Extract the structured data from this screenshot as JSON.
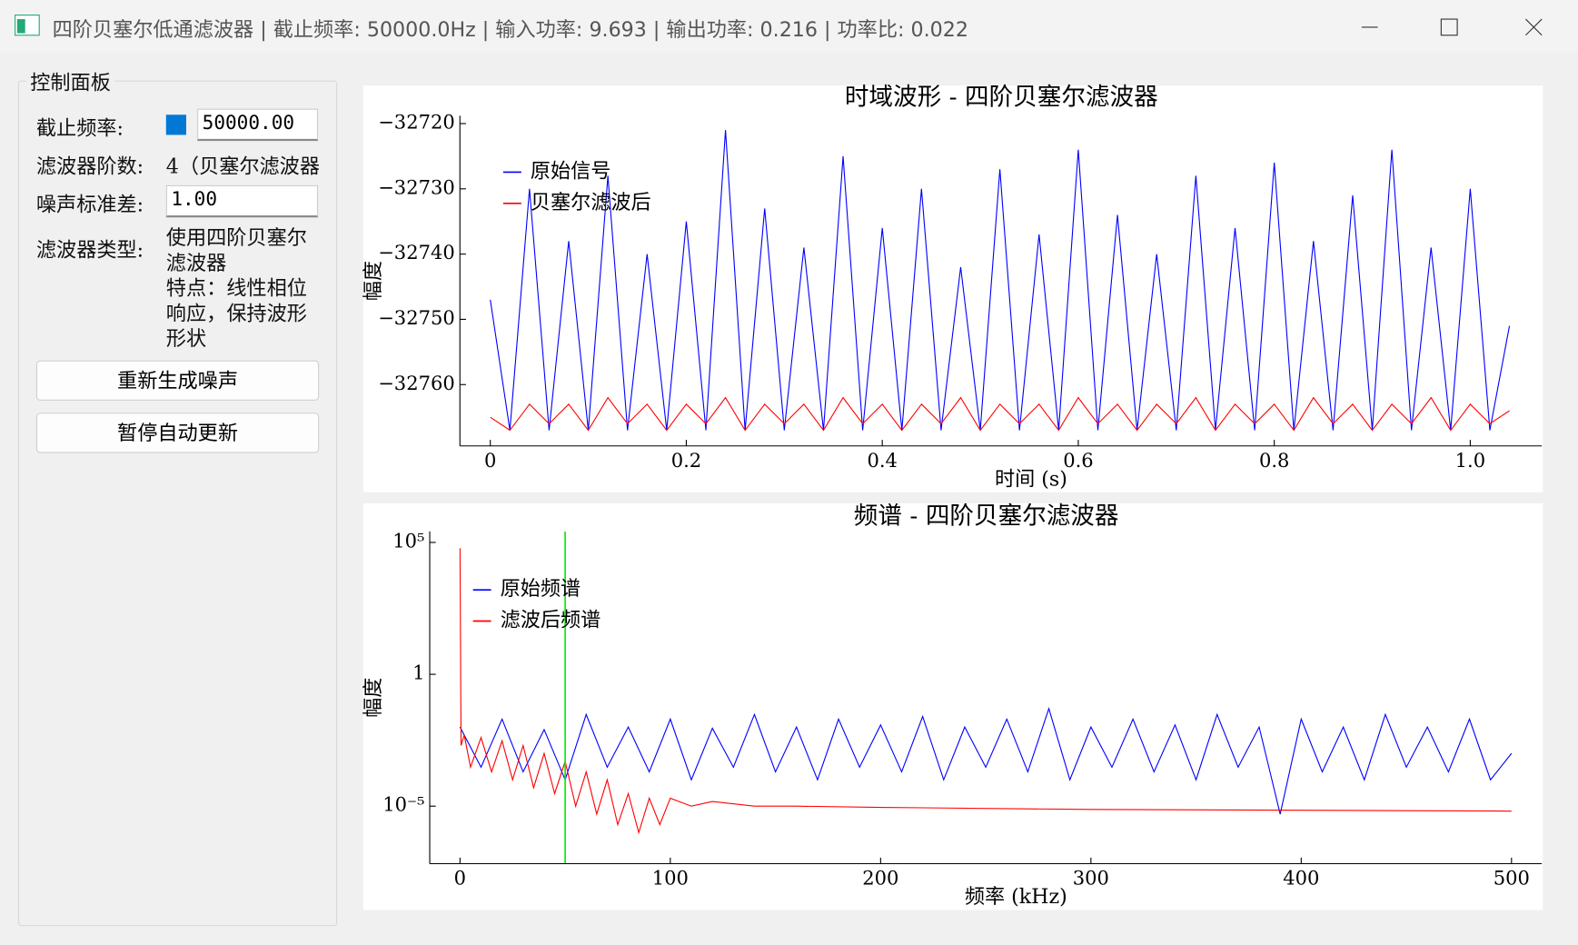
{
  "window": {
    "title": "四阶贝塞尔低通滤波器 | 截止频率: 50000.0Hz | 输入功率: 9.693 | 输出功率: 0.216 | 功率比: 0.022"
  },
  "panel": {
    "title": "控制面板",
    "cutoff_label": "截止频率:",
    "cutoff_value": "50000.00",
    "order_label": "滤波器阶数:",
    "order_value": "4（贝塞尔滤波器",
    "noise_label": "噪声标准差:",
    "noise_value": "1.00",
    "type_label": "滤波器类型:",
    "type_line1": "使用四阶贝塞尔滤波器",
    "type_line2": "特点：线性相位响应，保持波形形状",
    "button_regen": "重新生成噪声",
    "button_pause": "暂停自动更新"
  },
  "chart_data": [
    {
      "type": "line",
      "title": "时域波形 - 四阶贝塞尔滤波器",
      "x_label": "时间 (s)",
      "y_label": "幅度",
      "xlim": [
        -0.031,
        1.073
      ],
      "xticks": [
        0,
        0.2,
        0.4,
        0.6,
        0.8,
        {
          "value": 1.0,
          "label": "1.0"
        }
      ],
      "ylim": [
        -32769.4,
        -32718.8
      ],
      "yticks": [
        {
          "value": -32720,
          "label": "−32720"
        },
        {
          "value": -32730,
          "label": "−32730"
        },
        {
          "value": -32740,
          "label": "−32740"
        },
        {
          "value": -32750,
          "label": "−32750"
        },
        {
          "value": -32760,
          "label": "−32760"
        }
      ],
      "log_y": false,
      "series": [
        {
          "name": "原始信号",
          "color": "#0000ff",
          "x": [
            0,
            0.02,
            0.04,
            0.06,
            0.08,
            0.1,
            0.12,
            0.14,
            0.16,
            0.18,
            0.2,
            0.22,
            0.24,
            0.26,
            0.28,
            0.3,
            0.32,
            0.34,
            0.36,
            0.38,
            0.4,
            0.42,
            0.44,
            0.46,
            0.48,
            0.5,
            0.52,
            0.54,
            0.56,
            0.58,
            0.6,
            0.62,
            0.64,
            0.66,
            0.68,
            0.7,
            0.72,
            0.74,
            0.76,
            0.78,
            0.8,
            0.82,
            0.84,
            0.86,
            0.88,
            0.9,
            0.92,
            0.94,
            0.96,
            0.98,
            1.0,
            1.02,
            1.04
          ],
          "values": [
            -32747,
            -32767,
            -32730,
            -32767,
            -32738,
            -32767,
            -32728,
            -32767,
            -32740,
            -32767,
            -32735,
            -32767,
            -32721,
            -32767,
            -32733,
            -32767,
            -32739,
            -32767,
            -32725,
            -32767,
            -32736,
            -32767,
            -32730,
            -32767,
            -32742,
            -32767,
            -32727,
            -32767,
            -32737,
            -32767,
            -32724,
            -32767,
            -32734,
            -32767,
            -32740,
            -32767,
            -32728,
            -32767,
            -32736,
            -32767,
            -32726,
            -32767,
            -32738,
            -32767,
            -32731,
            -32767,
            -32724,
            -32767,
            -32739,
            -32767,
            -32730,
            -32767,
            -32751
          ]
        },
        {
          "name": "贝塞尔滤波后",
          "color": "#ff0000",
          "x": [
            0,
            0.02,
            0.04,
            0.06,
            0.08,
            0.1,
            0.12,
            0.14,
            0.16,
            0.18,
            0.2,
            0.22,
            0.24,
            0.26,
            0.28,
            0.3,
            0.32,
            0.34,
            0.36,
            0.38,
            0.4,
            0.42,
            0.44,
            0.46,
            0.48,
            0.5,
            0.52,
            0.54,
            0.56,
            0.58,
            0.6,
            0.62,
            0.64,
            0.66,
            0.68,
            0.7,
            0.72,
            0.74,
            0.76,
            0.78,
            0.8,
            0.82,
            0.84,
            0.86,
            0.88,
            0.9,
            0.92,
            0.94,
            0.96,
            0.98,
            1.0,
            1.02,
            1.04
          ],
          "values": [
            -32765,
            -32767,
            -32763,
            -32766,
            -32763,
            -32767,
            -32762,
            -32766,
            -32763,
            -32767,
            -32763,
            -32766,
            -32762,
            -32767,
            -32763,
            -32766,
            -32763,
            -32767,
            -32762,
            -32766,
            -32763,
            -32767,
            -32763,
            -32766,
            -32762,
            -32767,
            -32763,
            -32766,
            -32763,
            -32767,
            -32762,
            -32766,
            -32763,
            -32767,
            -32763,
            -32766,
            -32762,
            -32767,
            -32763,
            -32766,
            -32763,
            -32767,
            -32762,
            -32766,
            -32763,
            -32767,
            -32763,
            -32766,
            -32762,
            -32767,
            -32763,
            -32766,
            -32764
          ]
        }
      ]
    },
    {
      "type": "line",
      "title": "频谱 - 四阶贝塞尔滤波器",
      "x_label": "频率 (kHz)",
      "y_label": "幅度",
      "xlim": [
        -14.4,
        514.4
      ],
      "xticks": [
        0,
        100,
        200,
        300,
        400,
        500
      ],
      "ylim": [
        6.6e-08,
        260000
      ],
      "log_y": true,
      "yticks": [
        {
          "value": 100000,
          "label": "10⁵"
        },
        1,
        {
          "value": 1e-05,
          "label": "10⁻⁵"
        }
      ],
      "cutoff_x": 50,
      "cutoff_color": "#00ee00",
      "series": [
        {
          "name": "原始频谱",
          "color": "#0000ff",
          "x": [
            0,
            10,
            20,
            30,
            40,
            50,
            60,
            70,
            80,
            90,
            100,
            110,
            120,
            130,
            140,
            150,
            160,
            170,
            180,
            190,
            200,
            210,
            220,
            230,
            240,
            250,
            260,
            270,
            280,
            290,
            300,
            310,
            320,
            330,
            340,
            350,
            360,
            370,
            380,
            390,
            400,
            410,
            420,
            430,
            440,
            450,
            460,
            470,
            480,
            490,
            500
          ],
          "values": [
            0.01,
            0.0003,
            0.02,
            0.0002,
            0.008,
            0.0001,
            0.03,
            0.0003,
            0.01,
            0.0002,
            0.02,
            0.0001,
            0.009,
            0.0003,
            0.03,
            0.0002,
            0.01,
            0.0001,
            0.02,
            0.0003,
            0.012,
            0.0002,
            0.025,
            0.0001,
            0.01,
            0.0003,
            0.02,
            0.0002,
            0.05,
            0.0001,
            0.01,
            0.0003,
            0.02,
            0.0002,
            0.012,
            0.0001,
            0.03,
            0.0003,
            0.01,
            5e-06,
            0.02,
            0.0002,
            0.01,
            0.0001,
            0.03,
            0.0003,
            0.01,
            0.0002,
            0.02,
            0.0001,
            0.001
          ]
        },
        {
          "name": "滤波后频谱",
          "color": "#ff0000",
          "x": [
            0,
            0.5,
            2,
            5,
            10,
            15,
            20,
            25,
            30,
            35,
            40,
            45,
            50,
            55,
            60,
            65,
            70,
            75,
            80,
            85,
            90,
            95,
            100,
            110,
            120,
            140,
            160,
            200,
            300,
            400,
            500
          ],
          "values": [
            60000,
            0.002,
            0.005,
            0.0003,
            0.004,
            0.0002,
            0.003,
            0.0001,
            0.002,
            5e-05,
            0.001,
            3e-05,
            0.0005,
            1e-05,
            0.0002,
            5e-06,
            0.0001,
            2e-06,
            3e-05,
            1e-06,
            2e-05,
            2e-06,
            2e-05,
            1e-05,
            1.5e-05,
            1e-05,
            1e-05,
            9e-06,
            7.5e-06,
            7e-06,
            6.5e-06
          ]
        }
      ]
    }
  ]
}
